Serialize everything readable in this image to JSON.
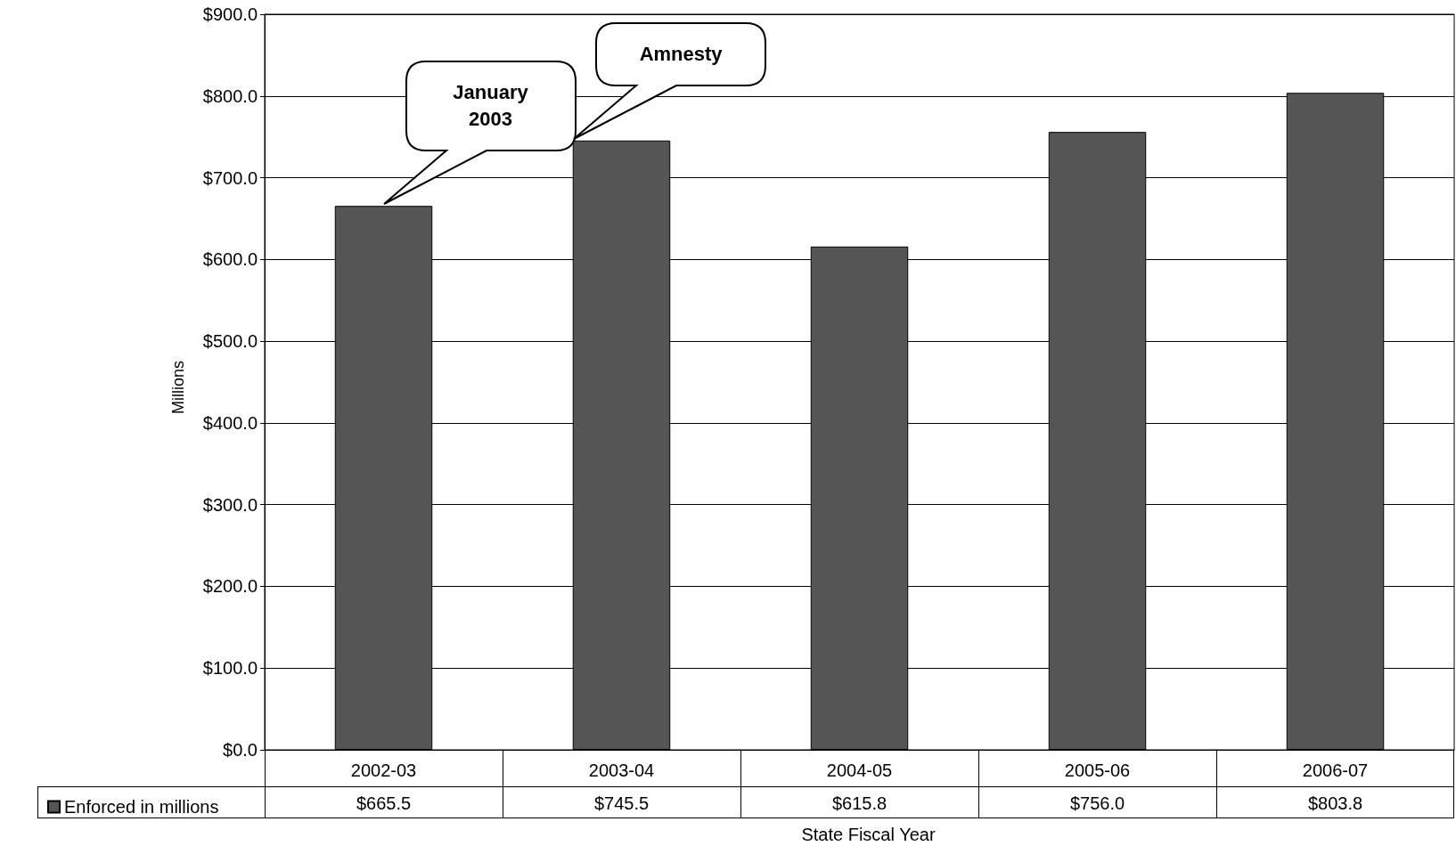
{
  "chart_data": {
    "type": "bar",
    "xlabel": "State Fiscal Year",
    "ylabel": "Millions",
    "categories": [
      "2002-03",
      "2003-04",
      "2004-05",
      "2005-06",
      "2006-07"
    ],
    "series": [
      {
        "name": "Enforced in millions",
        "color": "#555555",
        "values": [
          665.5,
          745.5,
          615.8,
          756.0,
          803.8
        ],
        "value_labels": [
          "$665.5",
          "$745.5",
          "$615.8",
          "$756.0",
          "$803.8"
        ]
      }
    ],
    "ylim": [
      0,
      900
    ],
    "yticks": [
      {
        "value": 0,
        "label": "$0.0"
      },
      {
        "value": 100,
        "label": "$100.0"
      },
      {
        "value": 200,
        "label": "$200.0"
      },
      {
        "value": 300,
        "label": "$300.0"
      },
      {
        "value": 400,
        "label": "$400.0"
      },
      {
        "value": 500,
        "label": "$500.0"
      },
      {
        "value": 600,
        "label": "$600.0"
      },
      {
        "value": 700,
        "label": "$700.0"
      },
      {
        "value": 800,
        "label": "$800.0"
      },
      {
        "value": 900,
        "label": "$900.0"
      }
    ],
    "grid": "y",
    "legend": "bottom",
    "annotations": [
      "January 2003",
      "Amnesty"
    ]
  }
}
